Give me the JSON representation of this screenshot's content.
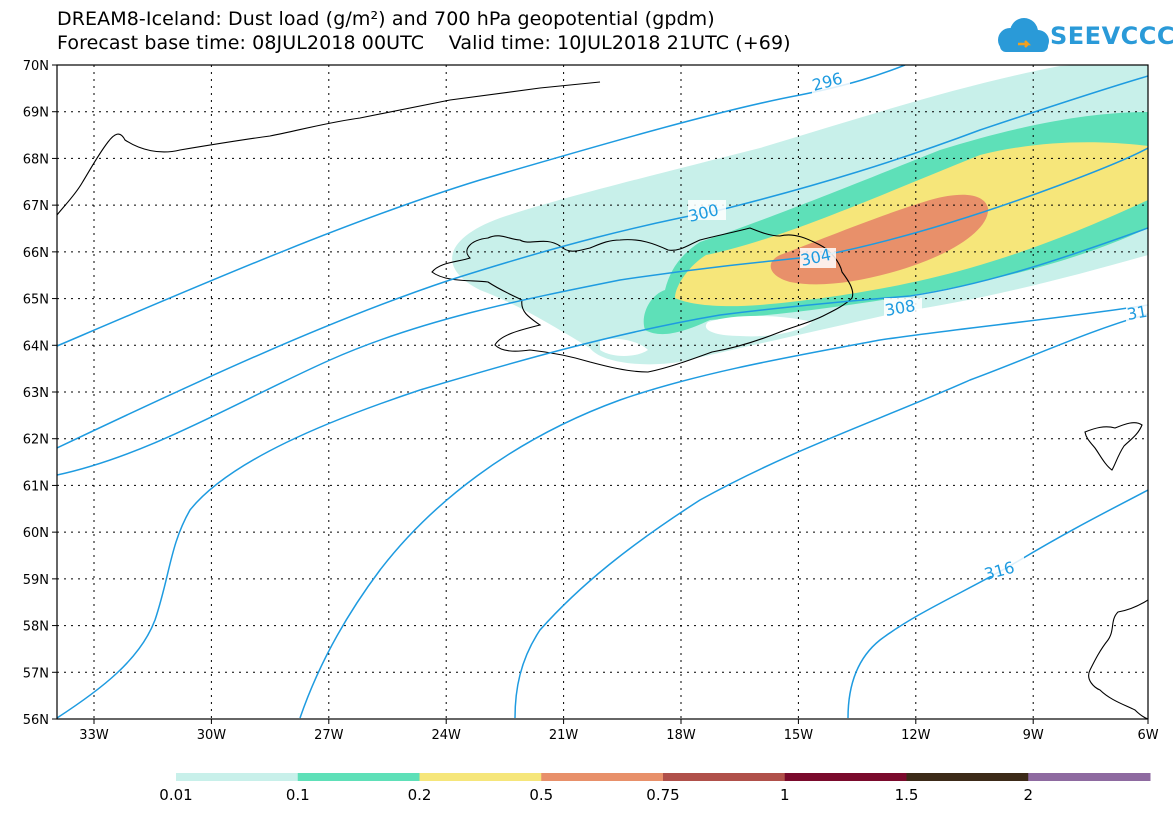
{
  "header": {
    "title_line1": "DREAM8-Iceland: Dust load (g/m²) and 700 hPa geopotential (gpdm)",
    "title_line2": "Forecast base time: 08JUL2018 00UTC    Valid time: 10JUL2018 21UTC (+69)"
  },
  "logo": {
    "text": "SEEVCCC",
    "icon": "cloud-icon",
    "color": "#2a9ad8"
  },
  "map": {
    "lat_labels": [
      "70N",
      "69N",
      "68N",
      "67N",
      "66N",
      "65N",
      "64N",
      "63N",
      "62N",
      "61N",
      "60N",
      "59N",
      "58N",
      "57N",
      "56N"
    ],
    "lon_labels": [
      "33W",
      "30W",
      "27W",
      "24W",
      "21W",
      "18W",
      "15W",
      "12W",
      "9W",
      "6W"
    ],
    "contour_color": "#1e9be0",
    "contour_labels": [
      "296",
      "300",
      "304",
      "308",
      "31",
      "316"
    ]
  },
  "colorbar": {
    "labels": [
      "0.01",
      "0.1",
      "0.2",
      "0.5",
      "0.75",
      "1",
      "1.5",
      "2"
    ],
    "colors": [
      "#c8f0ea",
      "#5ee0b8",
      "#f6e67a",
      "#e8906a",
      "#b0504a",
      "#7a0a2c",
      "#3c2a18",
      "#8e6aa0"
    ]
  }
}
